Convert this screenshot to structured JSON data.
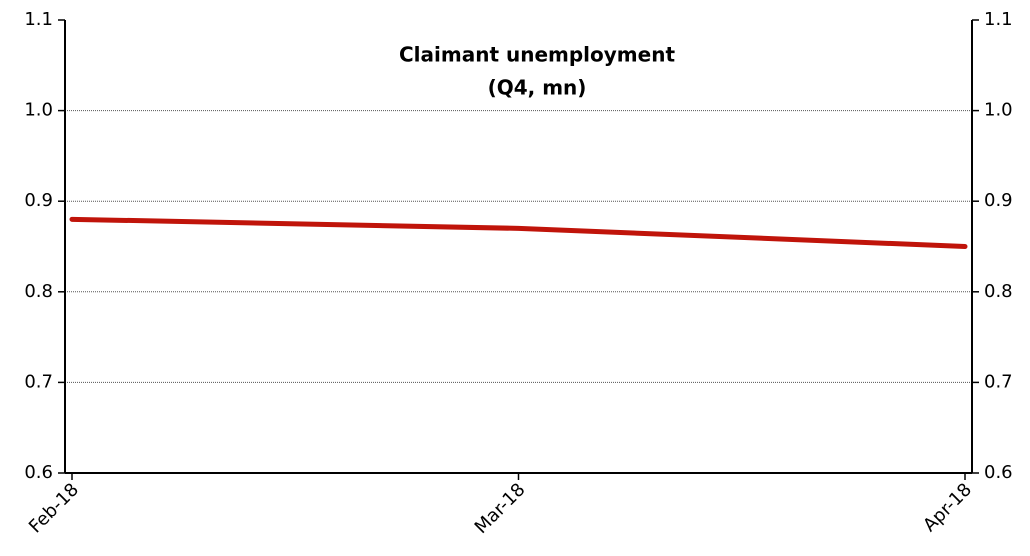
{
  "chart_data": {
    "type": "line",
    "title": "Claimant unemployment",
    "subtitle": "(Q4, mn)",
    "categories": [
      "Feb-18",
      "Mar-18",
      "Apr-18"
    ],
    "series": [
      {
        "name": "Claimant unemployment",
        "color": "#c0140a",
        "values": [
          0.88,
          0.87,
          0.85
        ]
      }
    ],
    "ylim": [
      0.6,
      1.1
    ],
    "yticks": [
      0.6,
      0.7,
      0.8,
      0.9,
      {
        "value": 1,
        "label": "1.0"
      },
      1.1
    ],
    "y2lim": [
      0.6,
      1.1
    ],
    "y2ticks": [
      0.6,
      0.7,
      0.8,
      0.9,
      {
        "value": 1,
        "label": "1.0"
      },
      1.1
    ],
    "grid": true
  }
}
